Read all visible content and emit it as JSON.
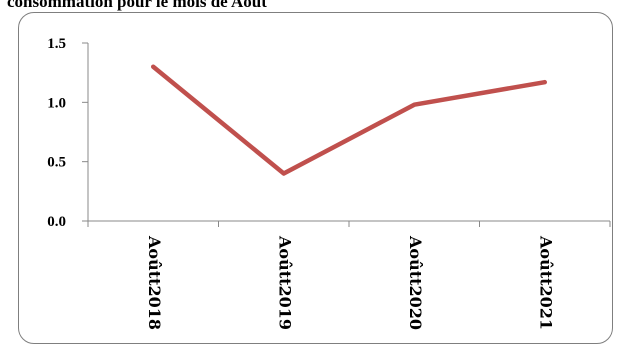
{
  "chart_data": {
    "type": "line",
    "title": "consommation pour le mois de Août",
    "xlabel": "",
    "ylabel": "",
    "categories": [
      "Aoûtt2018",
      "Aoûtt2019",
      "Aoûtt2020",
      "Aoûtt2021"
    ],
    "series": [
      {
        "values": [
          1.3,
          0.4,
          0.98,
          1.17
        ],
        "color": "#c0504d"
      }
    ],
    "ylim": [
      0,
      1.5
    ],
    "yticks": [
      "0.0",
      "0.5",
      "1.0",
      "1.5"
    ],
    "grid": false,
    "legend": "none"
  }
}
